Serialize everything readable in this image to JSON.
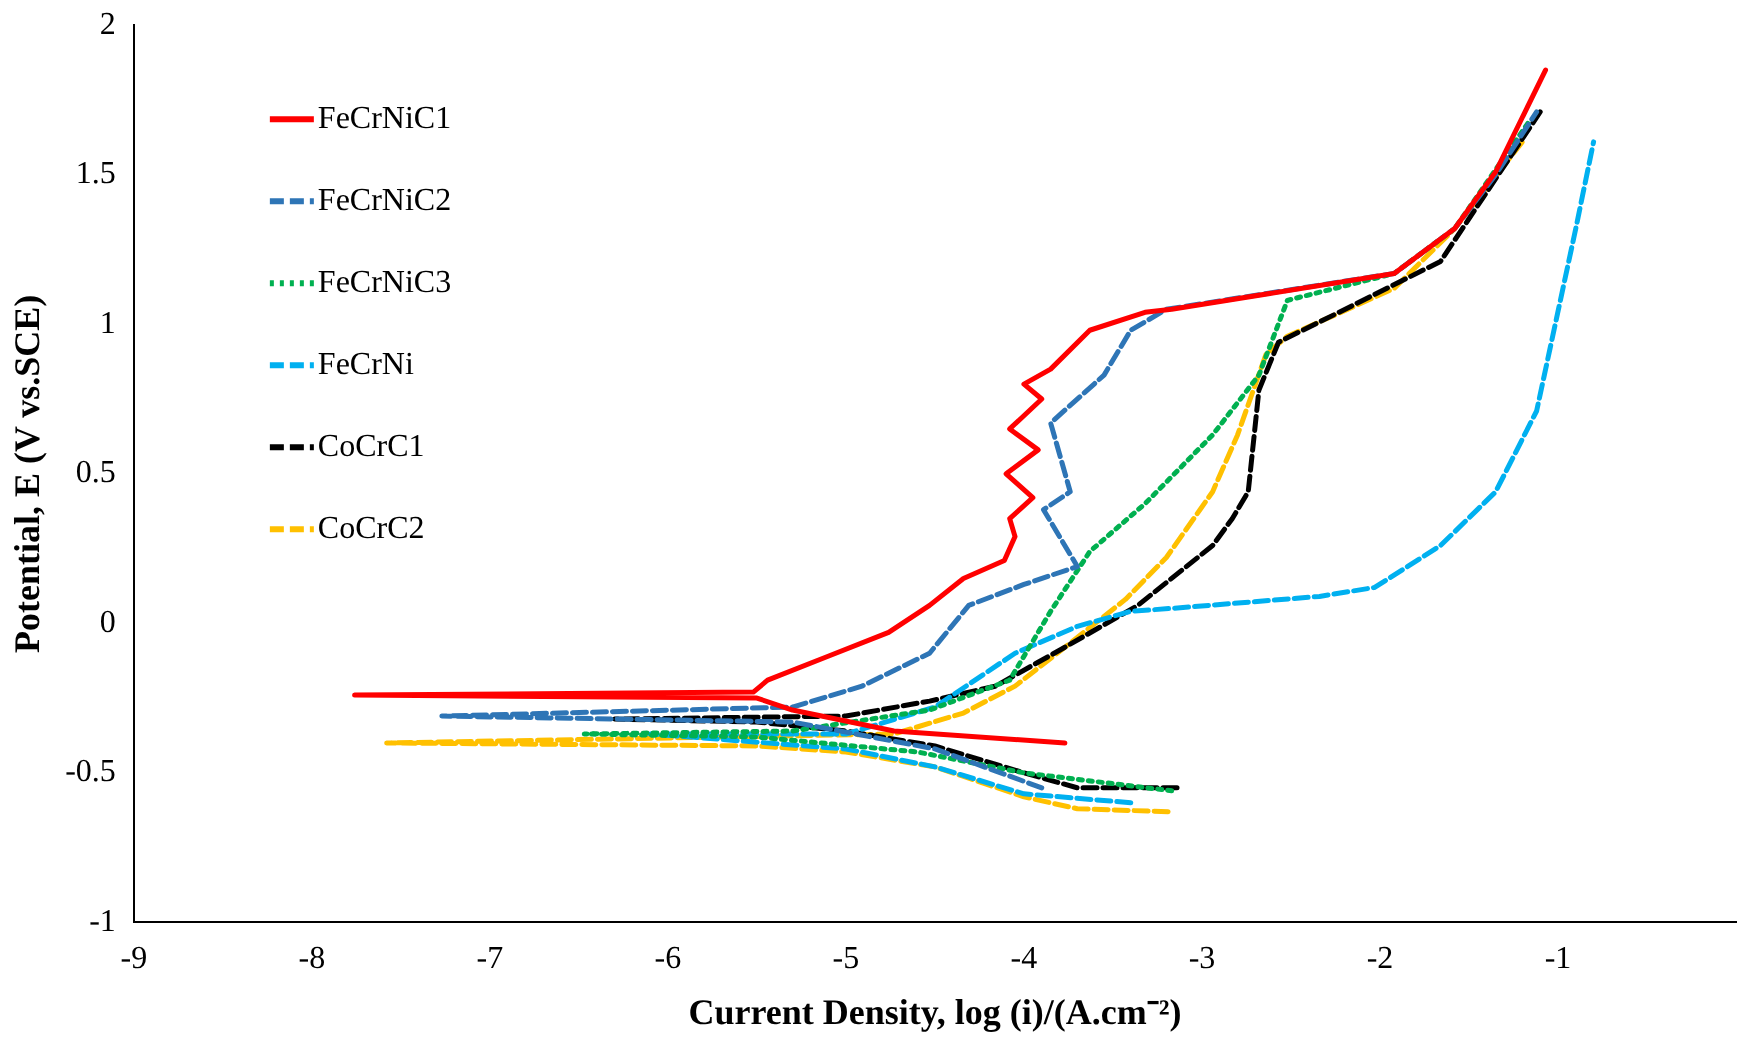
{
  "chart_data": {
    "type": "line",
    "xlabel": "Current Density, log (i)/(A.cm⁻²)",
    "ylabel": "Potential, E (V vs.SCE)",
    "xlim": [
      -9,
      0
    ],
    "xticks": [
      -9,
      -8,
      -7,
      -6,
      -5,
      -4,
      -3,
      -2,
      -1
    ],
    "ylim": [
      -1,
      2
    ],
    "yticks": [
      -1,
      -0.5,
      0,
      0.5,
      1,
      1.5,
      2
    ],
    "grid": false,
    "legend": "top left",
    "marker": "none",
    "series": [
      {
        "name": "FeCrNiC1",
        "color": "#ff0000",
        "line_style": "solid",
        "x": [
          -3.77,
          -4.73,
          -5.3,
          -5.5,
          -7.76,
          -5.52,
          -5.44,
          -5.1,
          -4.76,
          -4.53,
          -4.34,
          -4.11,
          -4.05,
          -4.08,
          -3.95,
          -4.1,
          -3.92,
          -4.08,
          -3.9,
          -4.0,
          -3.85,
          -3.63,
          -3.32,
          -3.17,
          -1.92,
          -1.58,
          -1.35,
          -1.07
        ],
        "values": [
          -0.4,
          -0.36,
          -0.29,
          -0.25,
          -0.24,
          -0.23,
          -0.19,
          -0.11,
          -0.03,
          0.06,
          0.15,
          0.21,
          0.29,
          0.35,
          0.42,
          0.5,
          0.58,
          0.65,
          0.75,
          0.8,
          0.85,
          0.98,
          1.04,
          1.05,
          1.17,
          1.32,
          1.51,
          1.85
        ]
      },
      {
        "name": "FeCrNiC2",
        "color": "#2e75b6",
        "line_style": "dashed",
        "x": [
          -3.9,
          -4.5,
          -5.3,
          -7.27,
          -5.3,
          -4.91,
          -4.53,
          -4.31,
          -4.0,
          -3.7,
          -3.89,
          -3.74,
          -3.85,
          -3.55,
          -3.4,
          -3.2,
          -1.92,
          -1.58,
          -1.35,
          -1.12
        ],
        "values": [
          -0.55,
          -0.42,
          -0.33,
          -0.31,
          -0.28,
          -0.21,
          -0.1,
          0.06,
          0.13,
          0.19,
          0.38,
          0.44,
          0.67,
          0.83,
          0.98,
          1.05,
          1.17,
          1.32,
          1.5,
          1.71
        ]
      },
      {
        "name": "FeCrNiC3",
        "color": "#00b050",
        "line_style": "dotted",
        "x": [
          -3.17,
          -4.0,
          -4.6,
          -5.5,
          -6.47,
          -5.3,
          -4.53,
          -4.08,
          -3.85,
          -3.63,
          -3.32,
          -2.94,
          -2.68,
          -2.52,
          -1.92,
          -1.58,
          -1.16
        ],
        "values": [
          -0.56,
          -0.5,
          -0.43,
          -0.38,
          -0.37,
          -0.36,
          -0.29,
          -0.19,
          0.04,
          0.24,
          0.4,
          0.63,
          0.83,
          1.08,
          1.17,
          1.32,
          1.68
        ]
      },
      {
        "name": "FeCrNi",
        "color": "#00b0f0",
        "line_style": "dashed",
        "x": [
          -3.4,
          -4.0,
          -4.5,
          -5.0,
          -6.1,
          -5.0,
          -4.5,
          -4.05,
          -3.7,
          -3.4,
          -3.17,
          -2.34,
          -2.03,
          -1.66,
          -1.35,
          -1.12,
          -0.9,
          -0.8
        ],
        "values": [
          -0.6,
          -0.57,
          -0.48,
          -0.42,
          -0.37,
          -0.37,
          -0.28,
          -0.1,
          -0.01,
          0.04,
          0.05,
          0.09,
          0.12,
          0.26,
          0.44,
          0.71,
          1.32,
          1.61
        ]
      },
      {
        "name": "CoCrC1",
        "color": "#000000",
        "line_style": "dashed",
        "x": [
          -3.14,
          -3.7,
          -4.0,
          -4.5,
          -5.0,
          -5.5,
          -6.3,
          -5.0,
          -4.53,
          -4.16,
          -3.77,
          -3.36,
          -2.94,
          -2.83,
          -2.74,
          -2.68,
          -2.57,
          -2.23,
          -1.66,
          -1.1
        ],
        "values": [
          -0.55,
          -0.55,
          -0.5,
          -0.41,
          -0.36,
          -0.33,
          -0.32,
          -0.31,
          -0.26,
          -0.21,
          -0.08,
          0.06,
          0.26,
          0.35,
          0.44,
          0.78,
          0.94,
          1.04,
          1.21,
          1.71
        ]
      },
      {
        "name": "CoCrC2",
        "color": "#ffc000",
        "line_style": "dashed",
        "x": [
          -3.19,
          -3.7,
          -4.0,
          -4.5,
          -5.0,
          -5.5,
          -7.58,
          -4.73,
          -4.34,
          -4.05,
          -3.77,
          -3.43,
          -3.2,
          -2.94,
          -2.8,
          -2.64,
          -2.52,
          -1.92,
          -1.58,
          -1.2
        ],
        "values": [
          -0.63,
          -0.62,
          -0.58,
          -0.48,
          -0.43,
          -0.41,
          -0.4,
          -0.37,
          -0.3,
          -0.21,
          -0.08,
          0.08,
          0.22,
          0.44,
          0.63,
          0.9,
          0.96,
          1.12,
          1.32,
          1.61
        ]
      }
    ]
  }
}
